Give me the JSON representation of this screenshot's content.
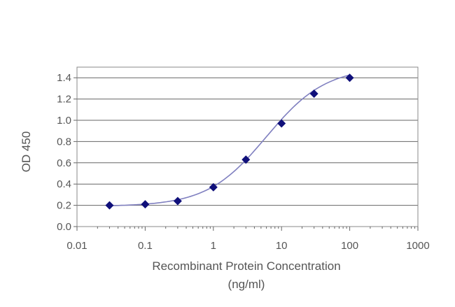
{
  "chart_data": {
    "type": "scatter",
    "title": "",
    "xlabel": "Recombinant Protein Concentration",
    "xlabel_unit": "(ng/ml)",
    "ylabel": "OD 450",
    "x_scale": "log",
    "xlim": [
      0.01,
      1000
    ],
    "ylim": [
      0.0,
      1.5
    ],
    "x_ticks": [
      "0.01",
      "0.1",
      "1",
      "10",
      "100",
      "1000"
    ],
    "y_ticks": [
      "0.0",
      "0.2",
      "0.4",
      "0.6",
      "0.8",
      "1.0",
      "1.2",
      "1.4"
    ],
    "grid": "horizontal",
    "legend": "none",
    "fitted_curve": true,
    "series": [
      {
        "x": [
          0.03,
          0.1,
          0.3,
          1,
          3,
          10,
          30,
          100
        ],
        "y": [
          0.2,
          0.21,
          0.24,
          0.37,
          0.63,
          0.97,
          1.25,
          1.4
        ]
      }
    ],
    "colors": {
      "marker": "#10107a",
      "curve": "#8080c0",
      "grid": "#666666",
      "axis_text": "#555555"
    }
  }
}
